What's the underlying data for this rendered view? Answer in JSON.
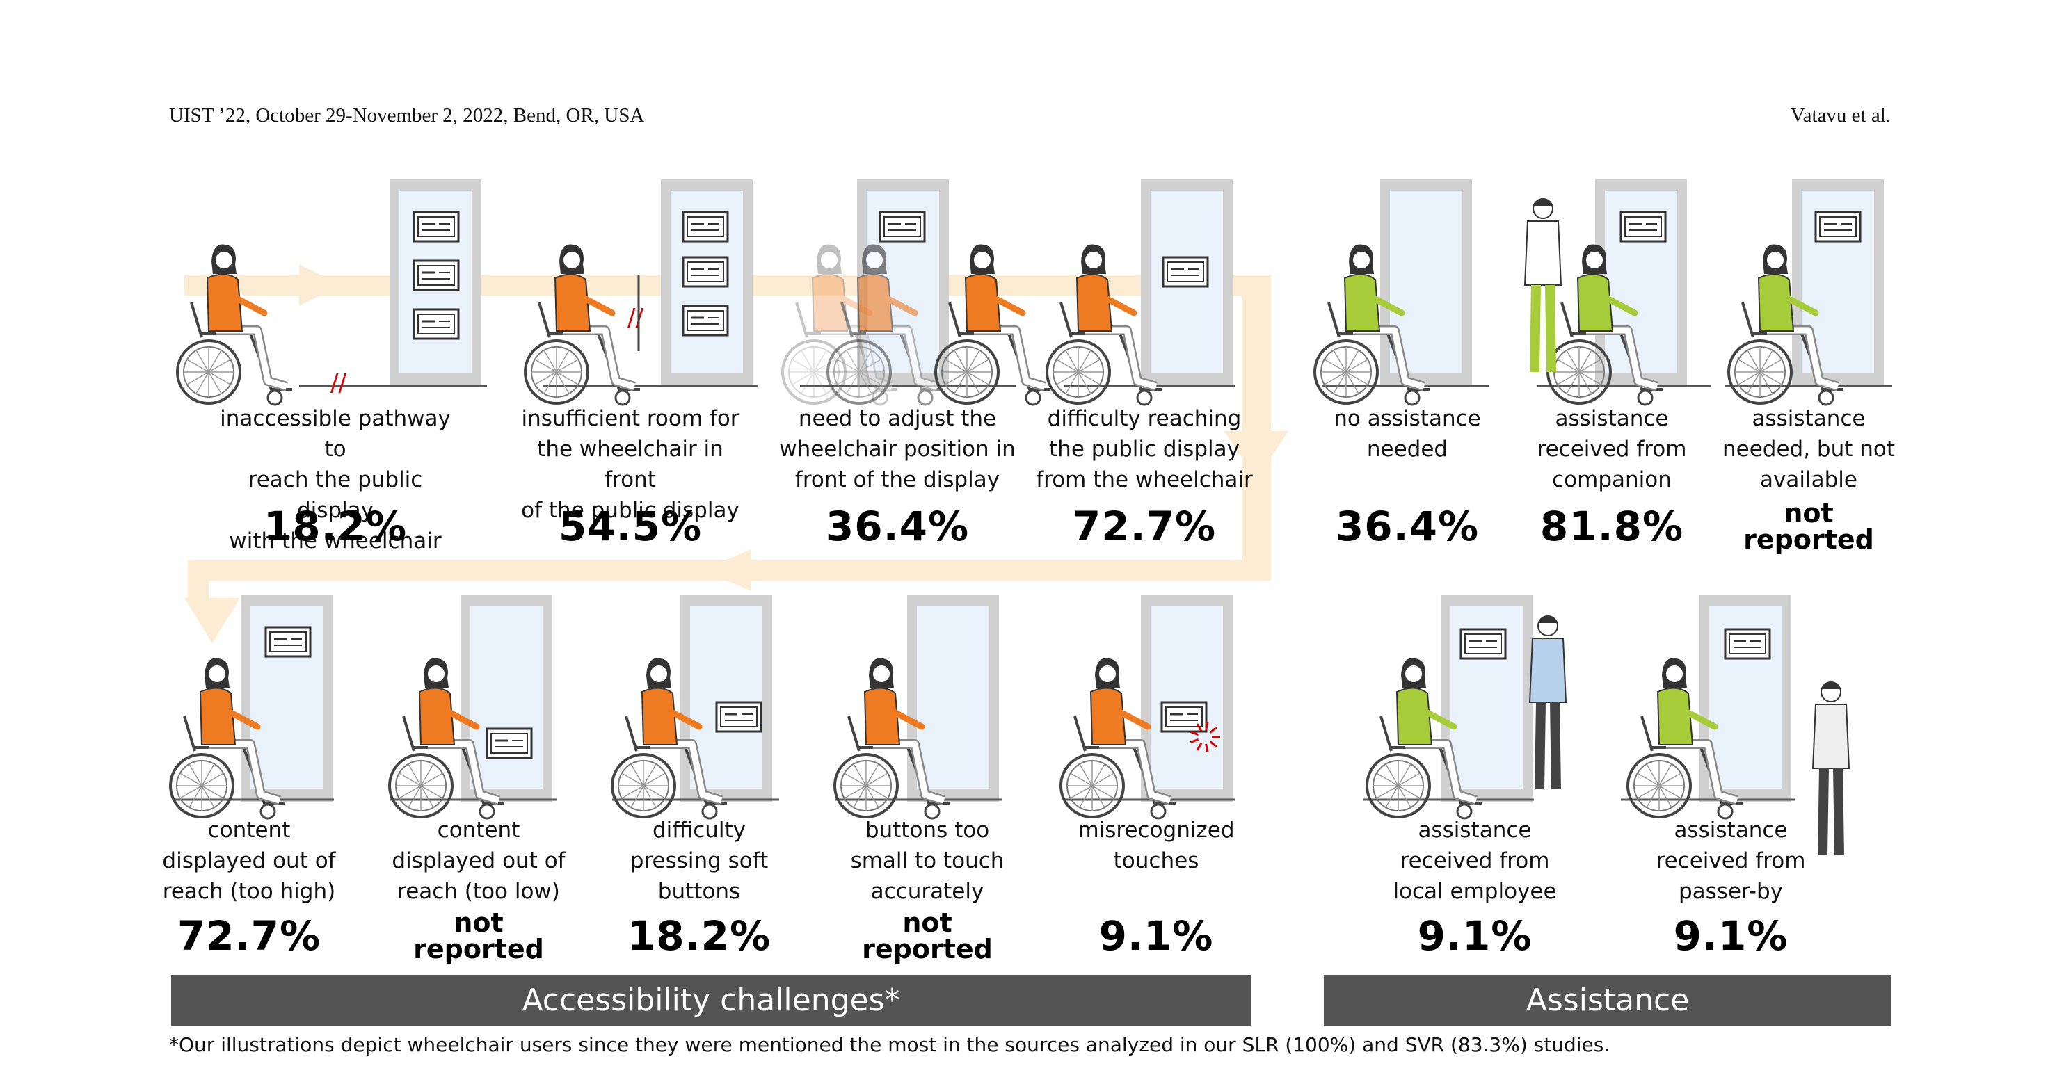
{
  "header": {
    "venue": "UIST ’22, October 29-November 2, 2022, Bend, OR, USA",
    "authors": "Vatavu et al."
  },
  "challenges": [
    {
      "caption": [
        "inaccessible pathway to",
        "reach the public display",
        "with the wheelchair"
      ],
      "value": "18.2%"
    },
    {
      "caption": [
        "insufficient room for",
        "the wheelchair in front",
        "of the public display"
      ],
      "value": "54.5%"
    },
    {
      "caption": [
        "need to adjust the",
        "wheelchair position in",
        "front of the display"
      ],
      "value": "36.4%"
    },
    {
      "caption": [
        "difficulty reaching",
        "the public display",
        "from the wheelchair"
      ],
      "value": "72.7%"
    },
    {
      "caption": [
        "content",
        "displayed out of",
        "reach (too high)"
      ],
      "value": "72.7%"
    },
    {
      "caption": [
        "content",
        "displayed out of",
        "reach (too low)"
      ],
      "value": "not reported"
    },
    {
      "caption": [
        "difficulty",
        "pressing soft",
        "buttons"
      ],
      "value": "18.2%"
    },
    {
      "caption": [
        "buttons too",
        "small to touch",
        "accurately"
      ],
      "value": "not reported"
    },
    {
      "caption": [
        "misrecognized",
        "touches"
      ],
      "value": "9.1%"
    }
  ],
  "assistance": [
    {
      "caption": [
        "no assistance",
        "needed"
      ],
      "value": "36.4%"
    },
    {
      "caption": [
        "assistance",
        "received from",
        "companion"
      ],
      "value": "81.8%"
    },
    {
      "caption": [
        "assistance",
        "needed, but not",
        "available"
      ],
      "value": "not reported"
    },
    {
      "caption": [
        "assistance",
        "received from",
        "local employee"
      ],
      "value": "9.1%"
    },
    {
      "caption": [
        "assistance",
        "received from",
        "passer-by"
      ],
      "value": "9.1%"
    }
  ],
  "bars": {
    "challenges": "Accessibility challenges*",
    "assistance": "Assistance"
  },
  "footnote": "*Our illustrations depict wheelchair users since they were mentioned the most in the sources analyzed in our SLR (100%) and SVR (83.3%) studies.",
  "colors": {
    "orange": "#ee7a22",
    "green": "#a6cc3a",
    "flow": "#fcebd2",
    "display": "#e9f2fa",
    "bar": "#545454"
  }
}
